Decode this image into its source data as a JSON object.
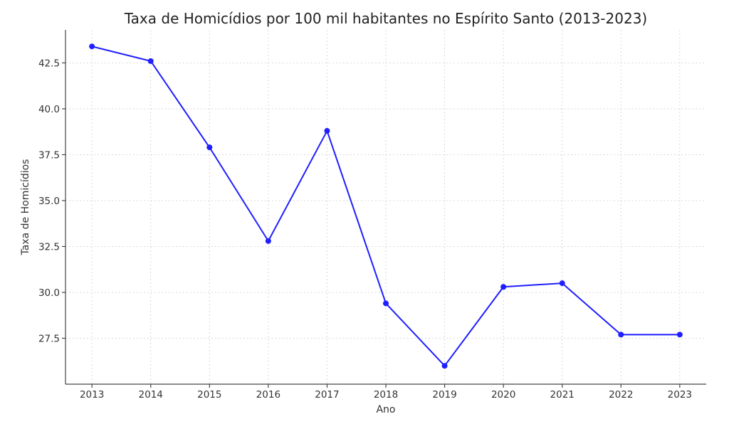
{
  "chart_data": {
    "type": "line",
    "title": "Taxa de Homicídios por 100 mil habitantes no Espírito Santo (2013-2023)",
    "xlabel": "Ano",
    "ylabel": "Taxa de Homicídios",
    "x": [
      2013,
      2014,
      2015,
      2016,
      2017,
      2018,
      2019,
      2020,
      2021,
      2022,
      2023
    ],
    "xtick_labels": [
      "2013",
      "2014",
      "2015",
      "2016",
      "2017",
      "2018",
      "2019",
      "2020",
      "2021",
      "2022",
      "2023"
    ],
    "series": [
      {
        "values": [
          43.4,
          42.6,
          37.9,
          32.8,
          38.8,
          29.4,
          26.0,
          30.3,
          30.5,
          27.7,
          27.7
        ],
        "color": "#1f1fff",
        "marker": "circle"
      }
    ],
    "yticks": [
      27.5,
      30.0,
      32.5,
      35.0,
      37.5,
      40.0,
      42.5
    ],
    "ytick_labels": [
      "27.5",
      "30.0",
      "32.5",
      "35.0",
      "37.5",
      "40.0",
      "42.5"
    ],
    "ylim": [
      25.0,
      44.3
    ],
    "xlim": [
      2012.55,
      2023.45
    ],
    "grid": true,
    "legend": "none"
  }
}
